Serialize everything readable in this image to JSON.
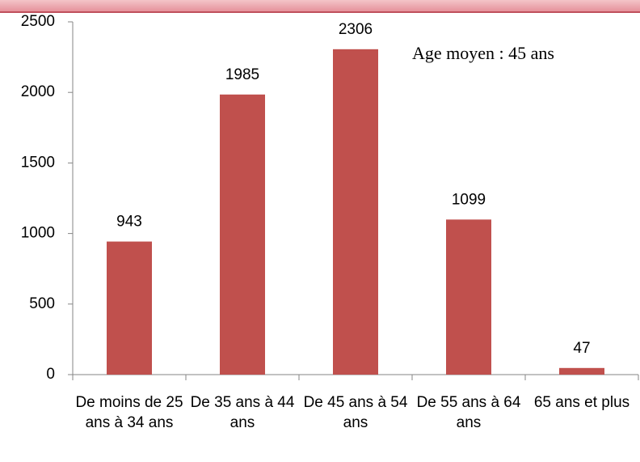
{
  "chart_data": {
    "type": "bar",
    "annotation": "Age moyen : 45 ans",
    "categories": [
      "De moins de 25 ans à 34 ans",
      "De 35 ans à 44 ans",
      "De 45 ans à 54 ans",
      "De 55 ans à 64 ans",
      "65 ans et plus"
    ],
    "values": [
      943,
      1985,
      2306,
      1099,
      47
    ],
    "color": "#c0504d",
    "ylim": [
      0,
      2500
    ],
    "yticks": [
      0,
      500,
      1000,
      1500,
      2000,
      2500
    ],
    "grid": false
  }
}
